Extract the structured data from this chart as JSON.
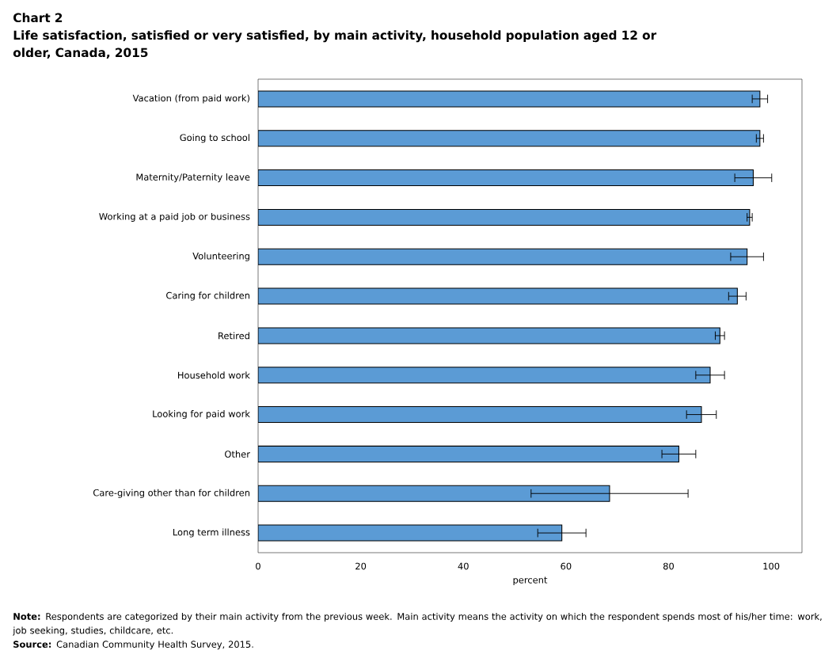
{
  "chart_data": {
    "type": "bar",
    "orientation": "horizontal",
    "title": "Chart 2",
    "subtitle": "Life satisfaction, satisfied or very satisfied, by main activity, household population aged 12 or older, Canada, 2015",
    "categories": [
      "Vacation (from paid work)",
      "Going to school",
      "Maternity/Paternity leave",
      "Working at a paid job or business",
      "Volunteering",
      "Caring for children",
      "Retired",
      "Household work",
      "Looking for paid work",
      "Other",
      "Care-giving other than for children",
      "Long term illness"
    ],
    "values": [
      97.8,
      97.8,
      96.5,
      95.8,
      95.3,
      93.4,
      90.0,
      88.1,
      86.4,
      82.0,
      68.5,
      59.2
    ],
    "errors": [
      1.5,
      0.7,
      3.6,
      0.5,
      3.2,
      1.7,
      0.9,
      2.8,
      2.9,
      3.3,
      15.3,
      4.7
    ],
    "color": "#5b9bd5",
    "xlim": [
      0,
      106
    ],
    "xticks": [
      0,
      20,
      40,
      60,
      80,
      100
    ],
    "xlabel": "percent",
    "annotations": [
      "**Note:** Respondents are categorized by their main activity from the previous week. Main activity means the activity on which the respondent spends most of his/her time: work, job seeking, studies, childcare, etc.",
      "**Source:** Canadian Community Health Survey, 2015."
    ]
  }
}
